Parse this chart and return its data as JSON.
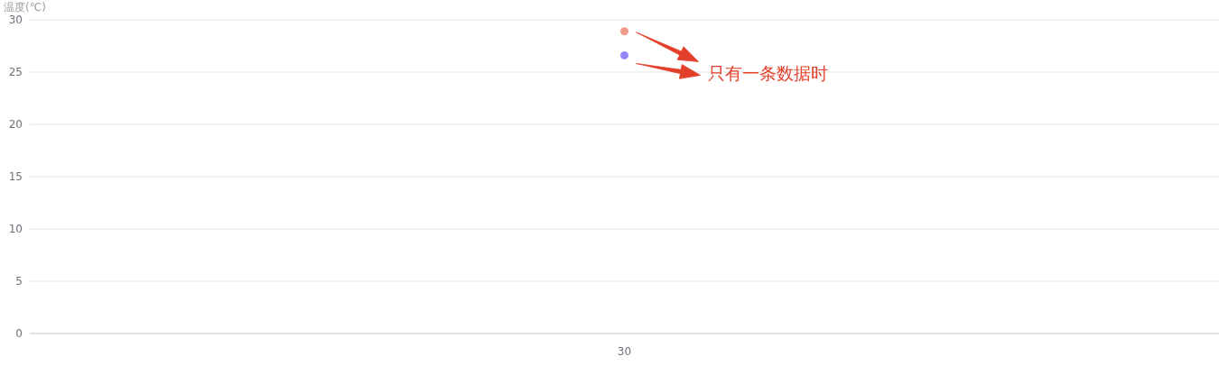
{
  "chart_data": {
    "type": "line",
    "ylabel": "温度(℃)",
    "categories": [
      "30"
    ],
    "series": [
      {
        "color": "#ee9b8b",
        "values": [
          28.9
        ]
      },
      {
        "color": "#9587f7",
        "values": [
          26.6
        ]
      }
    ],
    "ylim": [
      0,
      30
    ],
    "yticks": [
      0,
      5,
      10,
      15,
      20,
      25,
      30
    ],
    "grid": "y",
    "marker": "circle",
    "annotations": [
      "只有一条数据时"
    ]
  }
}
